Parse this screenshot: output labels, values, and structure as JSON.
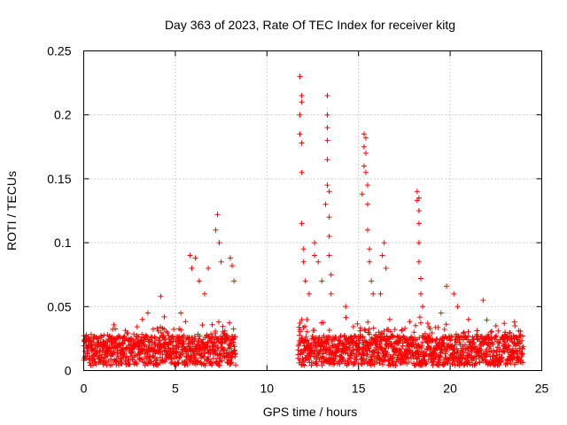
{
  "chart_data": {
    "type": "scatter",
    "title": "Day 363 of 2023, Rate Of TEC Index for receiver kitg",
    "xlabel": "GPS time / hours",
    "ylabel": "ROTI / TECUs",
    "xlim": [
      0,
      25
    ],
    "ylim": [
      0,
      0.25
    ],
    "x_ticks": [
      0,
      5,
      10,
      15,
      20,
      25
    ],
    "y_ticks": [
      0,
      0.05,
      0.1,
      0.15,
      0.2,
      0.25
    ],
    "x_tick_labels": [
      "0",
      "5",
      "10",
      "15",
      "20",
      "25"
    ],
    "y_tick_labels": [
      "0",
      "0.05",
      "0.1",
      "0.15",
      "0.2",
      "0.25"
    ],
    "grid": true,
    "marker": "+",
    "marker_color": "#ff0000",
    "series": [
      {
        "name": "ROTI",
        "coverage_hours": [
          [
            0.0,
            8.3
          ],
          [
            11.7,
            24.0
          ]
        ],
        "baseline_roti": 0.018,
        "notable_points": [
          [
            0.4,
            0.02
          ],
          [
            1.3,
            0.028
          ],
          [
            2.6,
            0.025
          ],
          [
            3.2,
            0.04
          ],
          [
            3.5,
            0.045
          ],
          [
            4.2,
            0.058
          ],
          [
            4.4,
            0.042
          ],
          [
            5.3,
            0.045
          ],
          [
            5.8,
            0.09
          ],
          [
            5.9,
            0.08
          ],
          [
            6.1,
            0.088
          ],
          [
            6.3,
            0.07
          ],
          [
            6.6,
            0.06
          ],
          [
            6.8,
            0.08
          ],
          [
            7.2,
            0.11
          ],
          [
            7.3,
            0.122
          ],
          [
            7.4,
            0.1
          ],
          [
            7.5,
            0.085
          ],
          [
            8.0,
            0.088
          ],
          [
            8.1,
            0.082
          ],
          [
            8.2,
            0.07
          ],
          [
            11.8,
            0.23
          ],
          [
            11.8,
            0.2
          ],
          [
            11.8,
            0.185
          ],
          [
            11.9,
            0.215
          ],
          [
            11.9,
            0.21
          ],
          [
            11.9,
            0.178
          ],
          [
            11.9,
            0.155
          ],
          [
            11.9,
            0.115
          ],
          [
            12.0,
            0.095
          ],
          [
            12.0,
            0.085
          ],
          [
            12.1,
            0.07
          ],
          [
            12.3,
            0.06
          ],
          [
            12.6,
            0.1
          ],
          [
            12.6,
            0.09
          ],
          [
            12.8,
            0.085
          ],
          [
            13.0,
            0.07
          ],
          [
            13.2,
            0.13
          ],
          [
            13.3,
            0.215
          ],
          [
            13.3,
            0.2
          ],
          [
            13.3,
            0.19
          ],
          [
            13.3,
            0.18
          ],
          [
            13.3,
            0.165
          ],
          [
            13.3,
            0.145
          ],
          [
            13.4,
            0.14
          ],
          [
            13.4,
            0.12
          ],
          [
            13.4,
            0.105
          ],
          [
            13.4,
            0.09
          ],
          [
            13.5,
            0.075
          ],
          [
            13.5,
            0.06
          ],
          [
            14.3,
            0.05
          ],
          [
            15.2,
            0.138
          ],
          [
            15.3,
            0.185
          ],
          [
            15.3,
            0.175
          ],
          [
            15.3,
            0.16
          ],
          [
            15.4,
            0.182
          ],
          [
            15.4,
            0.17
          ],
          [
            15.4,
            0.155
          ],
          [
            15.5,
            0.145
          ],
          [
            15.5,
            0.13
          ],
          [
            15.5,
            0.11
          ],
          [
            15.6,
            0.095
          ],
          [
            15.6,
            0.085
          ],
          [
            15.7,
            0.07
          ],
          [
            15.8,
            0.06
          ],
          [
            16.2,
            0.06
          ],
          [
            16.3,
            0.09
          ],
          [
            16.4,
            0.1
          ],
          [
            16.5,
            0.08
          ],
          [
            16.7,
            0.04
          ],
          [
            18.2,
            0.14
          ],
          [
            18.2,
            0.133
          ],
          [
            18.3,
            0.135
          ],
          [
            18.3,
            0.125
          ],
          [
            18.3,
            0.115
          ],
          [
            18.3,
            0.1
          ],
          [
            18.3,
            0.085
          ],
          [
            18.4,
            0.072
          ],
          [
            18.4,
            0.06
          ],
          [
            18.5,
            0.05
          ],
          [
            19.5,
            0.045
          ],
          [
            19.8,
            0.066
          ],
          [
            20.2,
            0.06
          ],
          [
            20.4,
            0.05
          ],
          [
            21.0,
            0.04
          ],
          [
            21.8,
            0.055
          ],
          [
            22.5,
            0.035
          ],
          [
            23.0,
            0.03
          ],
          [
            23.5,
            0.025
          ]
        ]
      }
    ]
  }
}
